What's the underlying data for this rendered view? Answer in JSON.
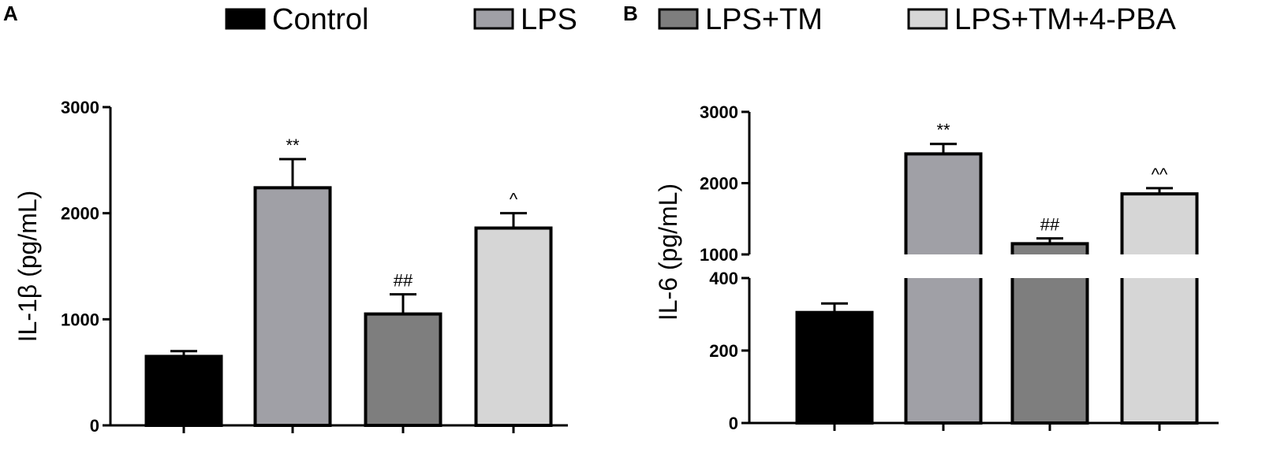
{
  "panels": {
    "a": "A",
    "b": "B"
  },
  "legend": [
    {
      "label": "Control",
      "color": "#000000"
    },
    {
      "label": "LPS",
      "color": "#a0a0a6"
    },
    {
      "label": "LPS+TM",
      "color": "#7e7e7e"
    },
    {
      "label": "LPS+TM+4-PBA",
      "color": "#d6d6d6"
    }
  ],
  "chart_data": [
    {
      "type": "bar",
      "panel": "A",
      "ylabel": "IL-1β (pg/mL)",
      "categories": [
        "Control",
        "LPS",
        "LPS+TM",
        "LPS+TM+4-PBA"
      ],
      "values": [
        650,
        2240,
        1050,
        1860
      ],
      "errors": [
        50,
        270,
        185,
        140
      ],
      "annotations": [
        "",
        "**",
        "##",
        "^"
      ],
      "ylim": [
        0,
        3000
      ],
      "yticks": [
        "0",
        "1000",
        "2000",
        "3000"
      ],
      "grid": false
    },
    {
      "type": "bar",
      "panel": "B",
      "ylabel": "IL-6 (pg/mL)",
      "categories": [
        "Control",
        "LPS",
        "LPS+TM",
        "LPS+TM+4-PBA"
      ],
      "values": [
        305,
        2410,
        1150,
        1850
      ],
      "errors": [
        25,
        140,
        75,
        80
      ],
      "annotations": [
        "",
        "**",
        "##",
        "^^"
      ],
      "axis_break": {
        "lower": [
          0,
          400
        ],
        "upper": [
          1000,
          3000
        ]
      },
      "yticks_lower": [
        "0",
        "200",
        "400"
      ],
      "yticks_upper": [
        "1000",
        "2000",
        "3000"
      ],
      "grid": false
    }
  ]
}
